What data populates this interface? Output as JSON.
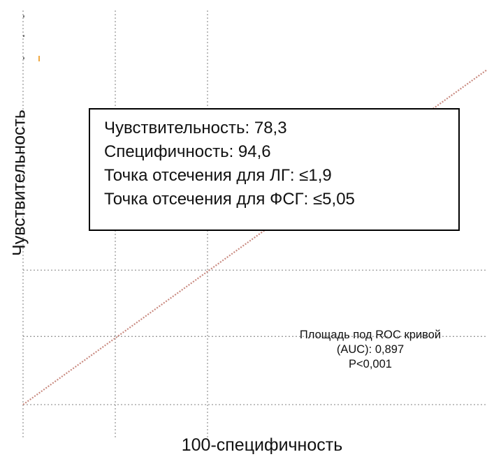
{
  "chart_data": {
    "type": "line",
    "xlabel": "100-специфичность",
    "ylabel": "Чувствительность",
    "xlim": [
      0,
      100
    ],
    "ylim": [
      0,
      100
    ],
    "grid": true,
    "series": [
      {
        "x": [
          0,
          100
        ],
        "y": [
          0,
          100
        ],
        "color": "#c98a80",
        "style": "dotted"
      }
    ],
    "annotations": {
      "stats": [
        "Чувствительность: 78,3",
        "Специфичность: 94,6",
        "Точка отсечения для ЛГ: ≤1,9",
        "Точка отсечения для ФСГ: ≤5,05"
      ],
      "auc": [
        "Площадь под ROC кривой",
        "(AUC): 0,897",
        "P<0,001"
      ]
    }
  }
}
